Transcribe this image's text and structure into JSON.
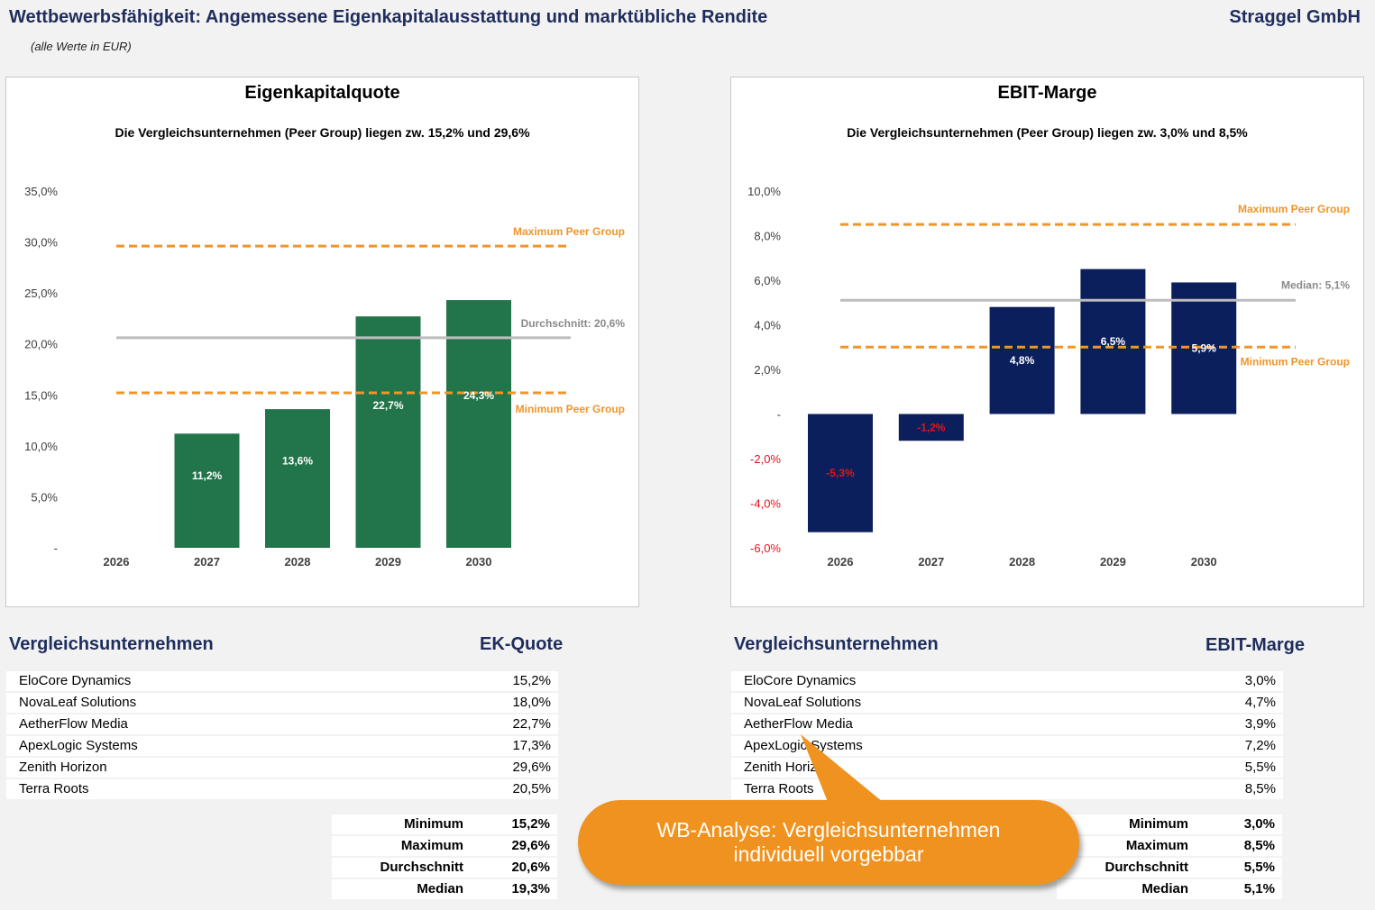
{
  "header": {
    "title": "Wettbewerbsfähigkeit: Angemessene Eigenkapitalausstattung und marktübliche Rendite",
    "company": "Straggel GmbH",
    "note": "(alle Werte in EUR)"
  },
  "colors": {
    "title_navy": "#1f2d5c",
    "ek_bar": "#22744a",
    "ebit_bar": "#0b1f5c",
    "peer_line": "#f0952a",
    "avg_line": "#bdbdbd",
    "negative_label": "#e3141c",
    "callout": "#f0921f"
  },
  "chart_data": [
    {
      "type": "bar",
      "title": "Eigenkapitalquote",
      "subtitle": "Die Vergleichsunternehmen (Peer Group) liegen zw. 15,2% und 29,6%",
      "categories": [
        "2026",
        "2027",
        "2028",
        "2029",
        "2030"
      ],
      "values": [
        null,
        11.2,
        13.6,
        22.7,
        24.3
      ],
      "value_labels": [
        "",
        "11,2%",
        "13,6%",
        "22,7%",
        "24,3%"
      ],
      "ylim": [
        0,
        35
      ],
      "yticks": [
        0,
        5,
        10,
        15,
        20,
        25,
        30,
        35
      ],
      "ytick_labels": [
        "-",
        "5,0%",
        "10,0%",
        "15,0%",
        "20,0%",
        "25,0%",
        "30,0%",
        "35,0%"
      ],
      "xlabel": "",
      "ylabel": "",
      "grid": false,
      "reference_lines": [
        {
          "name": "Maximum Peer Group",
          "value": 29.6,
          "style": "dashed",
          "label": "Maximum Peer Group"
        },
        {
          "name": "Durchschnitt",
          "value": 20.6,
          "style": "solid",
          "label": "Durchschnitt: 20,6%"
        },
        {
          "name": "Minimum Peer Group",
          "value": 15.2,
          "style": "dashed",
          "label": "Minimum Peer Group"
        }
      ]
    },
    {
      "type": "bar",
      "title": "EBIT-Marge",
      "subtitle": "Die Vergleichsunternehmen (Peer Group) liegen zw. 3,0% und 8,5%",
      "categories": [
        "2026",
        "2027",
        "2028",
        "2029",
        "2030"
      ],
      "values": [
        -5.3,
        -1.2,
        4.8,
        6.5,
        5.9
      ],
      "value_labels": [
        "-5,3%",
        "-1,2%",
        "4,8%",
        "6,5%",
        "5,9%"
      ],
      "ylim": [
        -6,
        10
      ],
      "yticks": [
        -6,
        -4,
        -2,
        0,
        2,
        4,
        6,
        8,
        10
      ],
      "ytick_labels": [
        "-6,0%",
        "-4,0%",
        "-2,0%",
        "-",
        "2,0%",
        "4,0%",
        "6,0%",
        "8,0%",
        "10,0%"
      ],
      "xlabel": "",
      "ylabel": "",
      "grid": false,
      "reference_lines": [
        {
          "name": "Maximum Peer Group",
          "value": 8.5,
          "style": "dashed",
          "label": "Maximum Peer Group"
        },
        {
          "name": "Median",
          "value": 5.1,
          "style": "solid",
          "label": "Median: 5,1%"
        },
        {
          "name": "Minimum Peer Group",
          "value": 3.0,
          "style": "dashed",
          "label": "Minimum Peer Group"
        }
      ]
    }
  ],
  "ek_table": {
    "heading": "Vergleichsunternehmen",
    "value_heading": "EK-Quote",
    "rows": [
      {
        "name": "EloCore Dynamics",
        "value": "15,2%"
      },
      {
        "name": "NovaLeaf Solutions",
        "value": "18,0%"
      },
      {
        "name": "AetherFlow Media",
        "value": "22,7%"
      },
      {
        "name": "ApexLogic Systems",
        "value": "17,3%"
      },
      {
        "name": "Zenith Horizon",
        "value": "29,6%"
      },
      {
        "name": "Terra Roots",
        "value": "20,5%"
      }
    ],
    "stats": [
      {
        "label": "Minimum",
        "value": "15,2%"
      },
      {
        "label": "Maximum",
        "value": "29,6%"
      },
      {
        "label": "Durchschnitt",
        "value": "20,6%"
      },
      {
        "label": "Median",
        "value": "19,3%"
      }
    ]
  },
  "ebit_table": {
    "heading": "Vergleichsunternehmen",
    "value_heading": "EBIT-Marge",
    "rows": [
      {
        "name": "EloCore Dynamics",
        "value": "3,0%"
      },
      {
        "name": "NovaLeaf Solutions",
        "value": "4,7%"
      },
      {
        "name": "AetherFlow Media",
        "value": "3,9%"
      },
      {
        "name": "ApexLogic Systems",
        "value": "7,2%"
      },
      {
        "name": "Zenith Horizon",
        "value": "5,5%"
      },
      {
        "name": "Terra Roots",
        "value": "8,5%"
      }
    ],
    "stats": [
      {
        "label": "Minimum",
        "value": "3,0%"
      },
      {
        "label": "Maximum",
        "value": "8,5%"
      },
      {
        "label": "Durchschnitt",
        "value": "5,5%"
      },
      {
        "label": "Median",
        "value": "5,1%"
      }
    ]
  },
  "callout": {
    "line1": "WB-Analyse: Vergleichsunternehmen",
    "line2": "individuell vorgebbar"
  }
}
